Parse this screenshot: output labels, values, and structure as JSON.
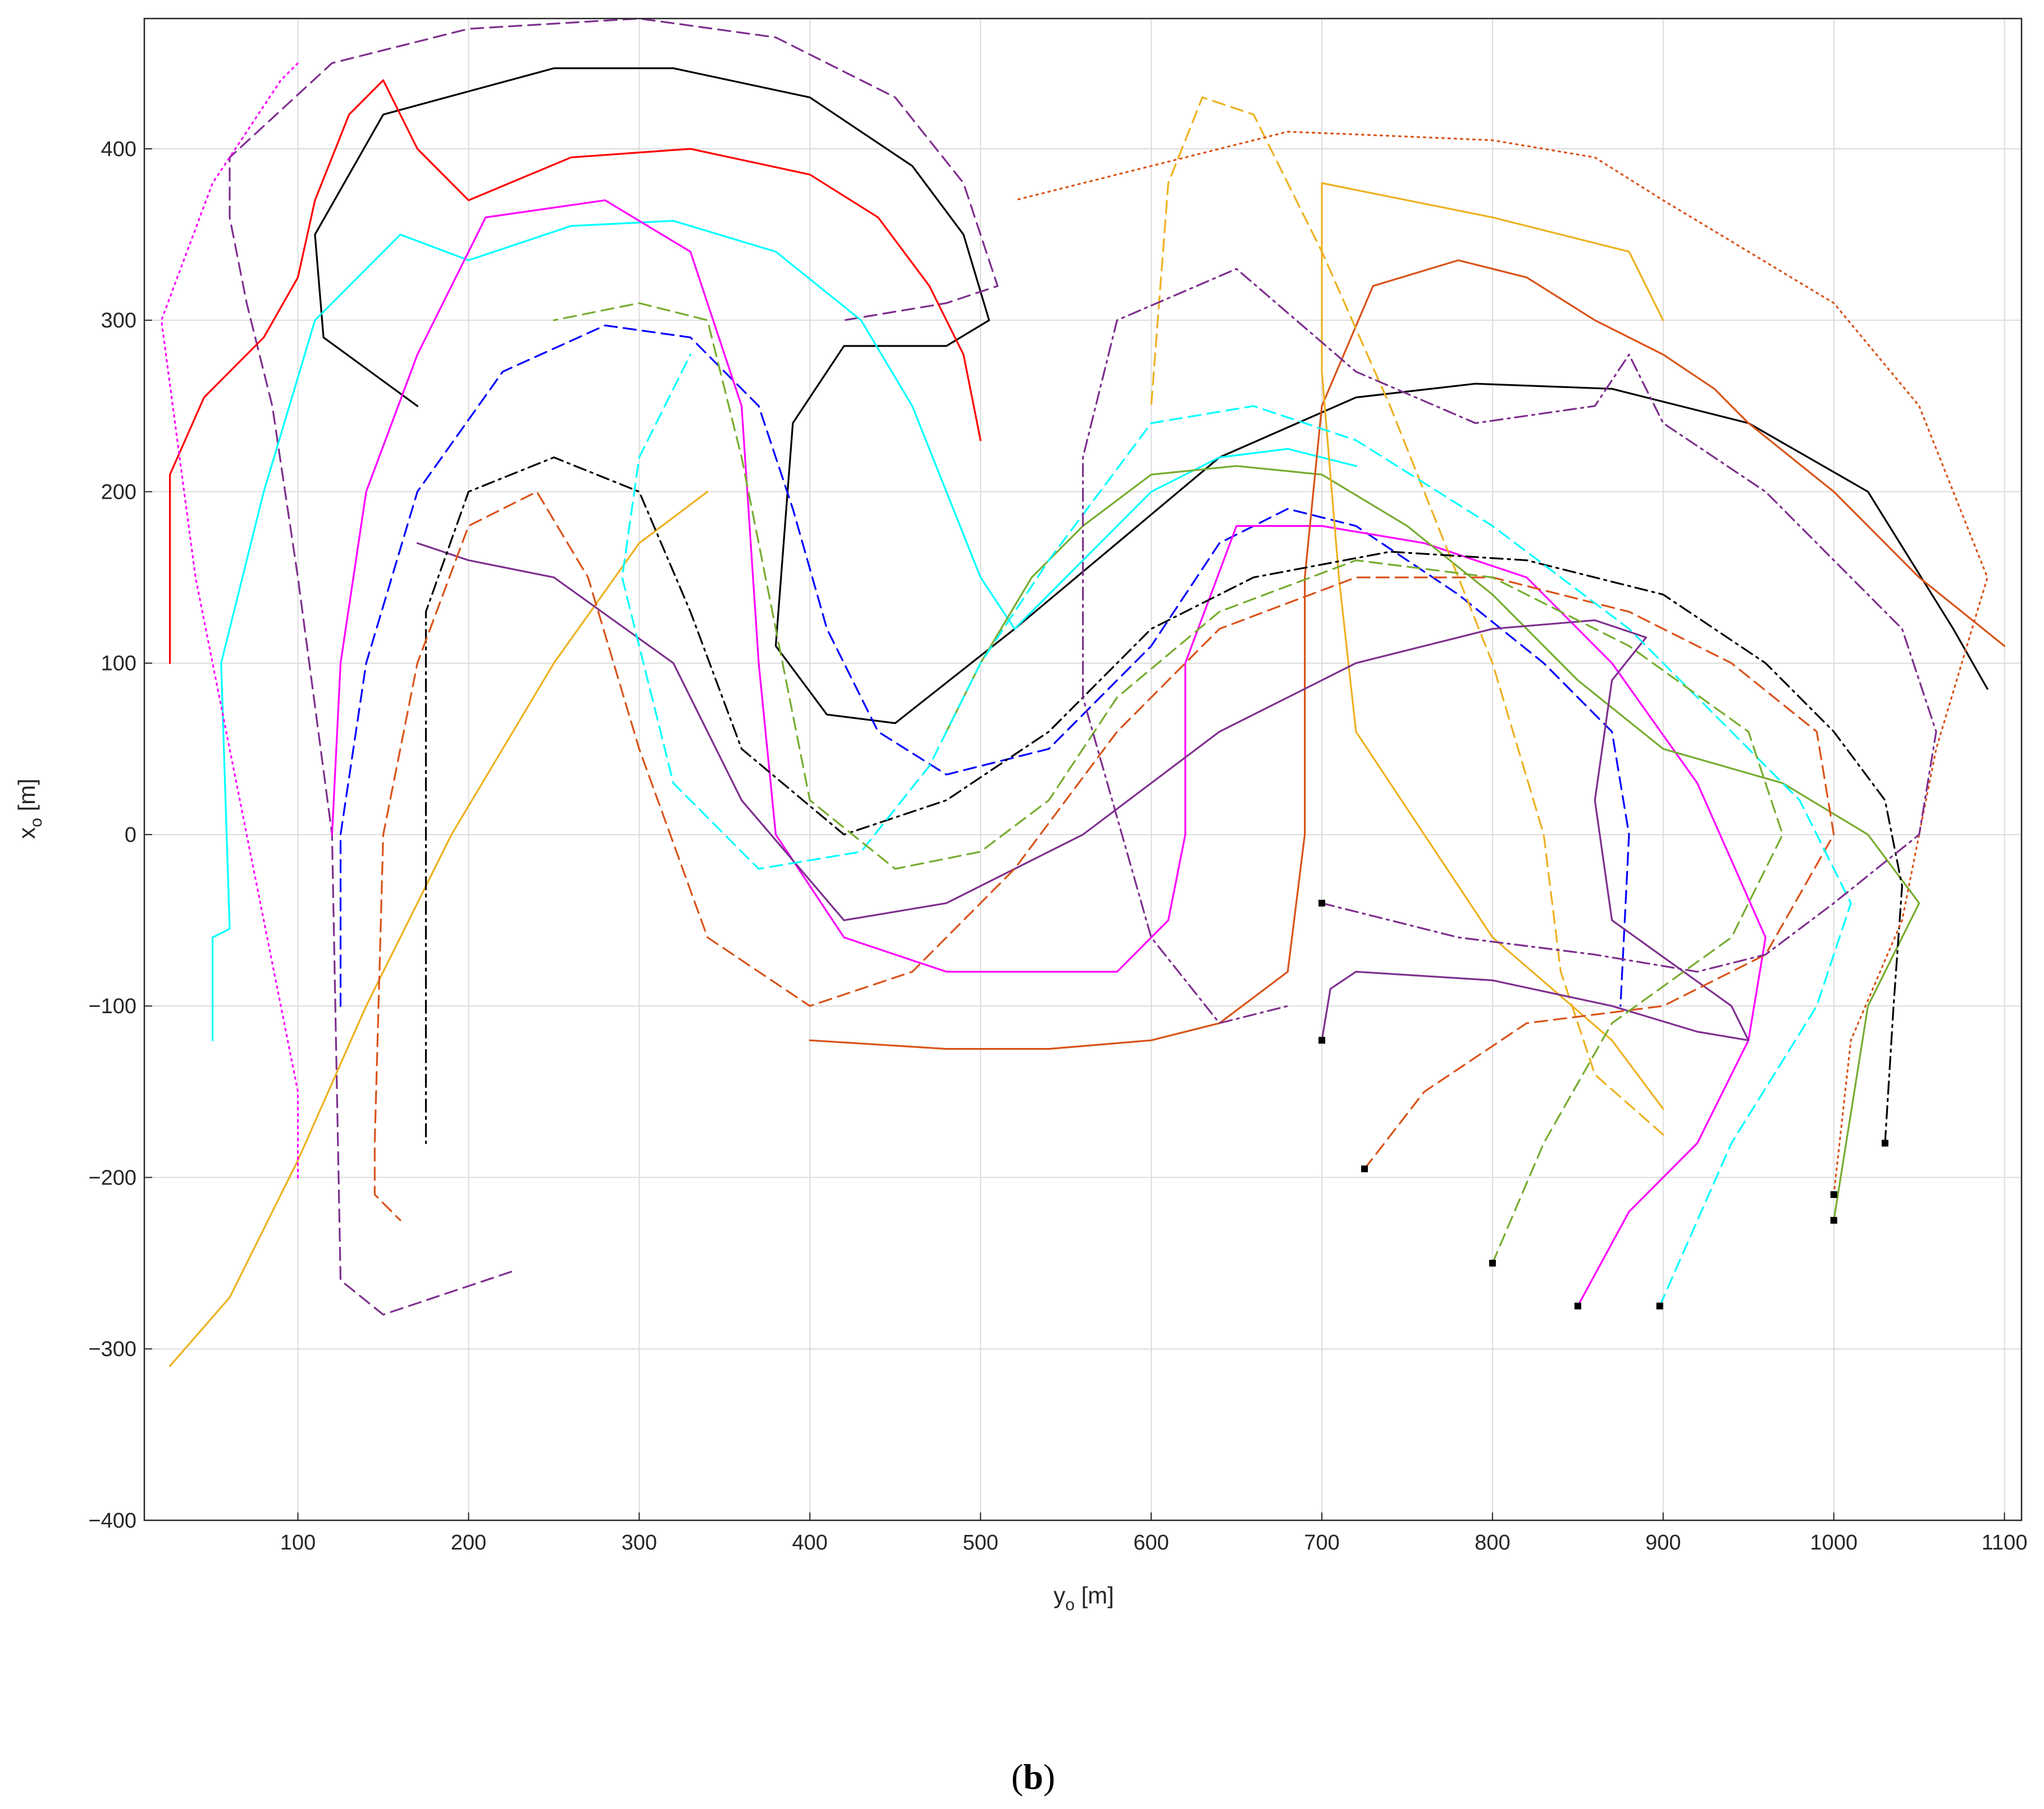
{
  "chart_data": {
    "type": "line",
    "x_label": {
      "text": "y",
      "subscript": "o",
      "suffix": " [m]"
    },
    "y_label": {
      "text": "x",
      "subscript": "o",
      "suffix": " [m]"
    },
    "caption": {
      "open": "(",
      "bold": "b",
      "close": ")"
    },
    "xlim": [
      10,
      1110
    ],
    "ylim": [
      -400,
      476
    ],
    "xticks": [
      100,
      200,
      300,
      400,
      500,
      600,
      700,
      800,
      900,
      1000,
      1100
    ],
    "yticks": [
      {
        "value": -400,
        "label": "−400"
      },
      {
        "value": -300,
        "label": "−300"
      },
      {
        "value": -200,
        "label": "−200"
      },
      {
        "value": -100,
        "label": "−100"
      },
      0,
      100,
      200,
      300,
      400
    ],
    "grid": true,
    "series": [
      {
        "color": "#000000",
        "style": "solid",
        "start_marker": false,
        "x": [
          170,
          115,
          110,
          150,
          250,
          320,
          400,
          460,
          490,
          505,
          480,
          420,
          390,
          380,
          410,
          450,
          520,
          580,
          640,
          720,
          790,
          870,
          950,
          1020,
          1070,
          1090
        ],
        "y": [
          250,
          290,
          350,
          420,
          447,
          447,
          430,
          390,
          350,
          300,
          285,
          285,
          240,
          110,
          70,
          65,
          120,
          170,
          220,
          255,
          263,
          260,
          240,
          200,
          120,
          85
        ]
      },
      {
        "color": "#7e2f8e",
        "style": "dashed",
        "start_marker": false,
        "x": [
          225,
          150,
          125,
          120,
          100,
          85,
          70,
          60,
          60,
          120,
          200,
          300,
          380,
          450,
          490,
          510,
          480,
          420
        ],
        "y": [
          -255,
          -280,
          -260,
          0,
          150,
          250,
          310,
          360,
          395,
          450,
          470,
          476,
          465,
          430,
          380,
          320,
          310,
          300
        ]
      },
      {
        "color": "#0000ff",
        "style": "dashed",
        "start_marker": false,
        "x": [
          125,
          125,
          140,
          170,
          220,
          280,
          330,
          370,
          390,
          410,
          440,
          480,
          540,
          600,
          640,
          680,
          720,
          780,
          830,
          870,
          880,
          875
        ],
        "y": [
          -100,
          0,
          100,
          200,
          270,
          297,
          290,
          250,
          190,
          120,
          60,
          35,
          50,
          110,
          170,
          190,
          180,
          140,
          100,
          60,
          0,
          -100
        ]
      },
      {
        "color": "#ff0000",
        "style": "solid",
        "start_marker": false,
        "x": [
          25,
          25,
          45,
          80,
          100,
          110,
          130,
          150,
          170,
          200,
          260,
          330,
          400,
          440,
          470,
          490,
          500
        ],
        "y": [
          100,
          210,
          255,
          290,
          325,
          370,
          420,
          440,
          400,
          370,
          395,
          400,
          385,
          360,
          320,
          280,
          230
        ]
      },
      {
        "color": "#00ffff",
        "style": "solid",
        "start_marker": false,
        "x": [
          50,
          50,
          60,
          55,
          80,
          110,
          160,
          200,
          260,
          320,
          380,
          430,
          460,
          480,
          500,
          520,
          560,
          600,
          640,
          680,
          720
        ],
        "y": [
          -120,
          -60,
          -55,
          100,
          200,
          300,
          350,
          335,
          355,
          358,
          340,
          300,
          250,
          200,
          150,
          120,
          160,
          200,
          220,
          225,
          215
        ]
      },
      {
        "color": "#ff00ff",
        "style": "solid",
        "start_marker": true,
        "x": [
          850,
          880,
          920,
          950,
          960,
          920,
          870,
          820,
          760,
          700,
          650,
          620,
          620,
          610,
          580,
          480,
          420,
          380,
          370,
          360,
          330,
          280,
          210,
          170,
          140,
          125,
          120
        ],
        "y": [
          -275,
          -220,
          -180,
          -120,
          -60,
          30,
          100,
          150,
          170,
          180,
          180,
          100,
          0,
          -50,
          -80,
          -80,
          -60,
          0,
          100,
          250,
          340,
          370,
          360,
          280,
          200,
          100,
          0
        ]
      },
      {
        "color": "#77ac30",
        "style": "solid",
        "start_marker": true,
        "x": [
          1000,
          1020,
          1050,
          1020,
          970,
          900,
          850,
          800,
          750,
          700,
          650,
          600,
          560,
          530,
          500,
          480
        ],
        "y": [
          -225,
          -100,
          -40,
          0,
          30,
          50,
          90,
          140,
          180,
          210,
          215,
          210,
          180,
          150,
          100,
          60
        ]
      },
      {
        "color": "#d95319",
        "style": "solid",
        "start_marker": false,
        "x": [
          1100,
          1050,
          1000,
          950,
          930,
          900,
          860,
          820,
          780,
          730,
          700,
          690,
          690,
          680,
          640,
          600,
          540,
          480,
          400
        ],
        "y": [
          110,
          150,
          200,
          240,
          260,
          280,
          300,
          325,
          335,
          320,
          250,
          150,
          0,
          -80,
          -110,
          -120,
          -125,
          -125,
          -120
        ]
      },
      {
        "color": "#edb120",
        "style": "solid",
        "start_marker": false,
        "x": [
          25,
          60,
          100,
          140,
          190,
          250,
          300,
          340
        ],
        "y": [
          -310,
          -270,
          -190,
          -100,
          0,
          100,
          170,
          200
        ]
      },
      {
        "color": "#edb120",
        "style": "solid",
        "start_marker": false,
        "x": [
          900,
          870,
          800,
          760,
          720,
          710,
          700,
          700,
          800,
          880,
          900
        ],
        "y": [
          -160,
          -120,
          -60,
          0,
          60,
          150,
          270,
          380,
          360,
          340,
          300
        ]
      },
      {
        "color": "#edb120",
        "style": "dashed",
        "start_marker": false,
        "x": [
          900,
          860,
          840,
          830,
          800,
          740,
          700,
          660,
          630,
          610,
          600
        ],
        "y": [
          -175,
          -140,
          -80,
          0,
          100,
          250,
          340,
          420,
          430,
          380,
          250
        ]
      },
      {
        "color": "#7e2f8e",
        "style": "solid",
        "start_marker": true,
        "x": [
          700,
          705,
          720,
          800,
          870,
          920,
          950,
          940,
          870,
          860,
          870,
          890,
          860,
          800,
          720,
          640,
          560,
          480,
          420,
          360,
          320,
          250,
          200,
          170
        ],
        "y": [
          -120,
          -90,
          -80,
          -85,
          -100,
          -115,
          -120,
          -100,
          -50,
          20,
          90,
          115,
          125,
          120,
          100,
          60,
          0,
          -40,
          -50,
          20,
          100,
          150,
          160,
          170
        ]
      },
      {
        "color": "#000000",
        "style": "dashdot",
        "start_marker": true,
        "x": [
          1030,
          1035,
          1040,
          1030,
          1000,
          960,
          900,
          820,
          740,
          660,
          600,
          540,
          480,
          420,
          360,
          330,
          300,
          250,
          200,
          175,
          175
        ],
        "y": [
          -180,
          -100,
          -30,
          20,
          60,
          100,
          140,
          160,
          165,
          150,
          120,
          60,
          20,
          0,
          50,
          130,
          200,
          220,
          200,
          130,
          -180
        ]
      },
      {
        "color": "#d95319",
        "style": "dashed",
        "start_marker": true,
        "x": [
          725,
          760,
          820,
          900,
          960,
          1000,
          990,
          940,
          880,
          800,
          720,
          640,
          580,
          520,
          460,
          400,
          340,
          300,
          270,
          240,
          200,
          170,
          150,
          145,
          145,
          160
        ],
        "y": [
          -195,
          -150,
          -110,
          -100,
          -70,
          0,
          60,
          100,
          130,
          150,
          150,
          120,
          60,
          -20,
          -80,
          -100,
          -60,
          50,
          150,
          200,
          180,
          100,
          0,
          -180,
          -210,
          -225
        ]
      },
      {
        "color": "#ff00ff",
        "style": "dotted",
        "start_marker": false,
        "x": [
          100,
          100,
          70,
          40,
          20,
          50,
          90,
          100
        ],
        "y": [
          -200,
          -150,
          0,
          150,
          300,
          380,
          440,
          450
        ]
      },
      {
        "color": "#d95319",
        "style": "dotted",
        "start_marker": true,
        "x": [
          1000,
          1010,
          1040,
          1060,
          1090,
          1050,
          1000,
          950,
          900,
          860,
          800,
          730,
          680,
          600,
          520
        ],
        "y": [
          -210,
          -120,
          -50,
          50,
          150,
          250,
          310,
          340,
          370,
          395,
          405,
          408,
          410,
          390,
          370
        ]
      },
      {
        "color": "#00ffff",
        "style": "dashed",
        "start_marker": true,
        "x": [
          898,
          940,
          990,
          1010,
          980,
          940,
          880,
          800,
          720,
          660,
          600,
          540,
          500,
          470,
          430,
          370,
          320,
          290,
          300,
          330
        ],
        "y": [
          -275,
          -180,
          -100,
          -40,
          20,
          60,
          120,
          180,
          230,
          250,
          240,
          160,
          100,
          40,
          -10,
          -20,
          30,
          150,
          220,
          280
        ]
      },
      {
        "color": "#77ac30",
        "style": "dashed",
        "start_marker": true,
        "x": [
          800,
          830,
          870,
          940,
          970,
          950,
          880,
          800,
          720,
          640,
          580,
          540,
          500,
          450,
          400,
          380,
          360,
          340,
          300,
          250
        ],
        "y": [
          -250,
          -180,
          -110,
          -60,
          0,
          60,
          110,
          150,
          160,
          130,
          80,
          20,
          -10,
          -20,
          20,
          120,
          220,
          300,
          310,
          300
        ]
      },
      {
        "color": "#7e2f8e",
        "style": "dashdot",
        "start_marker": true,
        "x": [
          700,
          780,
          860,
          920,
          960,
          1000,
          1050,
          1060,
          1040,
          1000,
          960,
          900,
          880,
          860,
          790,
          720,
          650,
          580,
          560,
          560,
          600,
          640,
          680
        ],
        "y": [
          -40,
          -60,
          -70,
          -80,
          -70,
          -40,
          0,
          60,
          120,
          160,
          200,
          240,
          280,
          250,
          240,
          270,
          330,
          300,
          220,
          80,
          -60,
          -110,
          -100
        ]
      }
    ]
  }
}
